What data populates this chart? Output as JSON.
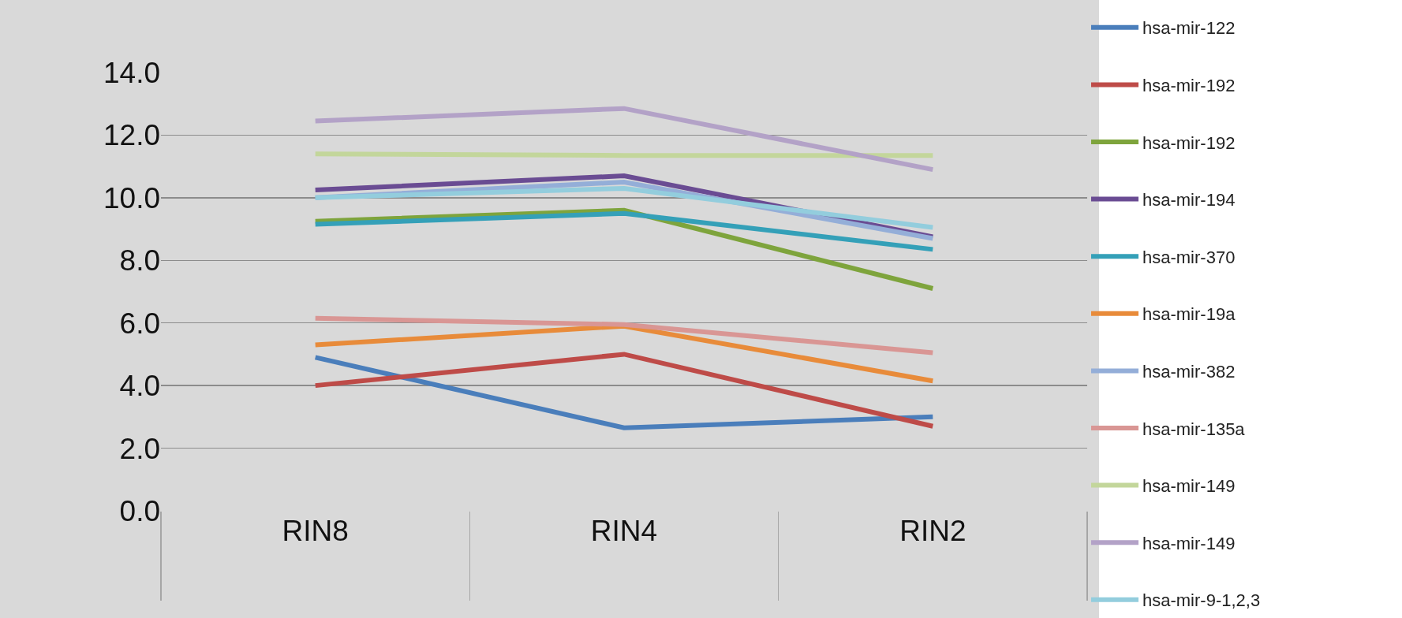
{
  "chart_data": {
    "type": "line",
    "categories": [
      "RIN8",
      "RIN4",
      "RIN2"
    ],
    "ylim": [
      0,
      14
    ],
    "yticks": [
      {
        "value": 0,
        "label": "0.0"
      },
      {
        "value": 2,
        "label": "2.0"
      },
      {
        "value": 4,
        "label": "4.0"
      },
      {
        "value": 6,
        "label": "6.0"
      },
      {
        "value": 8,
        "label": "8.0"
      },
      {
        "value": 10,
        "label": "10.0"
      },
      {
        "value": 12,
        "label": "12.0"
      },
      {
        "value": 14,
        "label": "14.0"
      }
    ],
    "grid": "y",
    "legend": "right",
    "marker": "none",
    "line_style": "solid",
    "series": [
      {
        "name": "hsa-mir-122",
        "color": "#4a7ebb",
        "values": [
          4.9,
          2.65,
          3.0
        ]
      },
      {
        "name": "hsa-mir-192",
        "color": "#be4b48",
        "values": [
          4.0,
          5.0,
          2.7
        ]
      },
      {
        "name": "hsa-mir-192",
        "color": "#7ea43c",
        "values": [
          9.25,
          9.6,
          7.1
        ]
      },
      {
        "name": "hsa-mir-194",
        "color": "#6a4c93",
        "values": [
          10.25,
          10.7,
          8.75
        ]
      },
      {
        "name": "hsa-mir-370",
        "color": "#34a0b8",
        "values": [
          9.15,
          9.5,
          8.35
        ]
      },
      {
        "name": "hsa-mir-19a",
        "color": "#e88b3a",
        "values": [
          5.3,
          5.9,
          4.15
        ]
      },
      {
        "name": "hsa-mir-382",
        "color": "#94aed8",
        "values": [
          10.0,
          10.5,
          8.7
        ]
      },
      {
        "name": "hsa-mir-135a",
        "color": "#d99694",
        "values": [
          6.15,
          5.95,
          5.05
        ]
      },
      {
        "name": "hsa-mir-149",
        "color": "#c3d69b",
        "values": [
          11.4,
          11.35,
          11.35
        ]
      },
      {
        "name": "hsa-mir-149",
        "color": "#b3a2c7",
        "values": [
          12.45,
          12.85,
          10.9
        ]
      },
      {
        "name": "hsa-mir-9-1,2,3",
        "color": "#93cddd",
        "values": [
          10.0,
          10.3,
          9.05
        ]
      }
    ]
  }
}
